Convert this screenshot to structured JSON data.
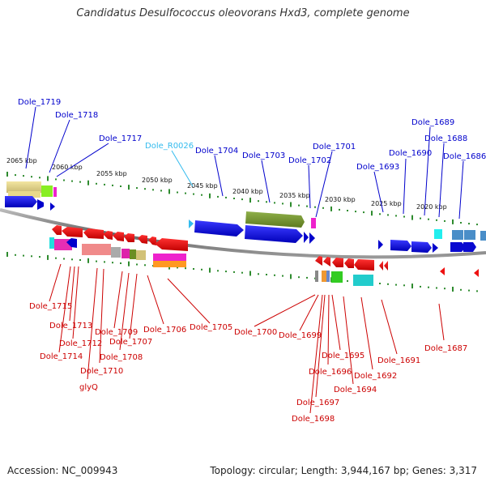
{
  "title": "Candidatus Desulfococcus oleovorans Hxd3, complete genome",
  "accession_text": "Accession: NC_009943",
  "topology_text": "Topology: circular; Length: 3,944,167 bp; Genes: 3,317",
  "colors": {
    "top_label": "#0000cc",
    "top_label_rna": "#33bbee",
    "bottom_label": "#cc0000",
    "backbone": "#777777",
    "tick": "#2e8b2e"
  },
  "scale_labels": [
    "2065 kbp",
    "2060 kbp",
    "2055 kbp",
    "2050 kbp",
    "2045 kbp",
    "2040 kbp",
    "2035 kbp",
    "2030 kbp",
    "2025 kbp",
    "2020 kbp"
  ],
  "top_labels": [
    {
      "text": "Dole_1719"
    },
    {
      "text": "Dole_1718"
    },
    {
      "text": "Dole_1717"
    },
    {
      "text": "Dole_R0026",
      "rna": true
    },
    {
      "text": "Dole_1704"
    },
    {
      "text": "Dole_1703"
    },
    {
      "text": "Dole_1702"
    },
    {
      "text": "Dole_1701"
    },
    {
      "text": "Dole_1693"
    },
    {
      "text": "Dole_1690"
    },
    {
      "text": "Dole_1689"
    },
    {
      "text": "Dole_1688"
    },
    {
      "text": "Dole_1686"
    }
  ],
  "bottom_labels": [
    {
      "text": "Dole_1715"
    },
    {
      "text": "Dole_1713"
    },
    {
      "text": "Dole_1712"
    },
    {
      "text": "Dole_1714"
    },
    {
      "text": "Dole_1710"
    },
    {
      "text": "glyQ"
    },
    {
      "text": "Dole_1709"
    },
    {
      "text": "Dole_1708"
    },
    {
      "text": "Dole_1707"
    },
    {
      "text": "Dole_1706"
    },
    {
      "text": "Dole_1705"
    },
    {
      "text": "Dole_1700"
    },
    {
      "text": "Dole_1699"
    },
    {
      "text": "Dole_1696"
    },
    {
      "text": "Dole_1697"
    },
    {
      "text": "Dole_1698"
    },
    {
      "text": "Dole_1695"
    },
    {
      "text": "Dole_1694"
    },
    {
      "text": "Dole_1692"
    },
    {
      "text": "Dole_1691"
    },
    {
      "text": "Dole_1687"
    }
  ]
}
